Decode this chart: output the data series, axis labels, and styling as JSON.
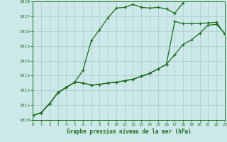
{
  "title": "Graphe pression niveau de la mer (hPa)",
  "bg_color": "#cce8e8",
  "grid_color": "#a8cccc",
  "line_color": "#1a6e1a",
  "xlim": [
    0,
    23
  ],
  "ylim": [
    1010,
    1018
  ],
  "yticks": [
    1010,
    1011,
    1012,
    1013,
    1014,
    1015,
    1016,
    1017,
    1018
  ],
  "xticks": [
    0,
    1,
    2,
    3,
    4,
    5,
    6,
    7,
    8,
    9,
    10,
    11,
    12,
    13,
    14,
    15,
    16,
    17,
    18,
    19,
    20,
    21,
    22,
    23
  ],
  "line1": [
    1010.3,
    1010.5,
    1011.1,
    1011.85,
    1012.2,
    1012.55,
    1013.35,
    1015.35,
    1016.1,
    1016.9,
    1017.55,
    1017.6,
    1017.8,
    1017.6,
    1017.55,
    1017.6,
    1017.5,
    1017.2,
    1017.9,
    null,
    null,
    null,
    null,
    null
  ],
  "line2": [
    1010.3,
    1010.5,
    1011.1,
    1011.85,
    1012.2,
    1012.55,
    1012.5,
    1012.35,
    1012.4,
    1012.5,
    1012.55,
    1012.65,
    1012.75,
    1012.95,
    1013.15,
    1013.45,
    1013.75,
    1016.65,
    1016.5,
    1016.5,
    1016.5,
    1016.55,
    1016.6,
    1015.8
  ],
  "line3": [
    1010.3,
    1010.5,
    1011.1,
    1011.85,
    1012.2,
    1012.55,
    1012.5,
    1012.35,
    1012.4,
    1012.5,
    1012.55,
    1012.65,
    1012.75,
    1012.95,
    1013.15,
    1013.45,
    1013.75,
    1014.4,
    1015.1,
    1015.4,
    1015.85,
    1016.4,
    1016.45,
    1015.85
  ]
}
